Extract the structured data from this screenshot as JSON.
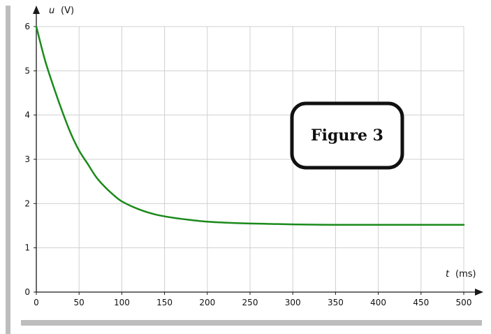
{
  "chart_data": {
    "type": "line",
    "x_axis": {
      "variable": "t",
      "unit": "(ms)",
      "range": [
        0,
        500
      ],
      "ticks": [
        "0",
        "50",
        "100",
        "150",
        "200",
        "250",
        "300",
        "350",
        "400",
        "450",
        "500"
      ]
    },
    "y_axis": {
      "variable": "u",
      "unit": "(V)",
      "range": [
        0,
        6
      ],
      "ticks": [
        "0",
        "1",
        "2",
        "3",
        "4",
        "5",
        "6"
      ]
    },
    "grid": true,
    "annotation": "Figure 3",
    "series": [
      {
        "color": "#1a8a1a",
        "x": [
          0,
          10,
          20,
          30,
          40,
          50,
          60,
          70,
          80,
          90,
          100,
          120,
          140,
          160,
          180,
          200,
          220,
          250,
          275,
          300,
          350,
          400,
          450,
          500
        ],
        "y": [
          6.0,
          5.25,
          4.65,
          4.1,
          3.6,
          3.2,
          2.9,
          2.6,
          2.38,
          2.2,
          2.05,
          1.87,
          1.75,
          1.68,
          1.63,
          1.59,
          1.57,
          1.55,
          1.54,
          1.53,
          1.52,
          1.52,
          1.52,
          1.52
        ]
      }
    ]
  },
  "colors": {
    "curve": "#1a8a1a",
    "grid": "#d0d0d0",
    "axis": "#1a1a1a",
    "shadow": "#bdbdbd"
  }
}
